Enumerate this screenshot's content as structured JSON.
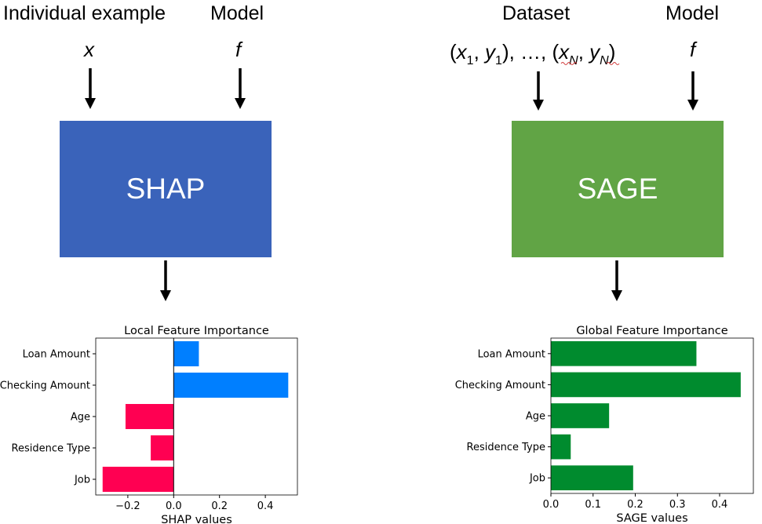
{
  "left": {
    "input_title": "Individual example",
    "input_var": "x",
    "model_title": "Model",
    "model_var": "f",
    "method": "SHAP",
    "method_color": "#3A63BA"
  },
  "right": {
    "input_title": "Dataset",
    "model_title": "Model",
    "model_var": "f",
    "method": "SAGE",
    "method_color": "#61A445"
  },
  "chart_data": [
    {
      "type": "bar",
      "orientation": "horizontal",
      "title": "Local Feature Importance",
      "xlabel": "SHAP values",
      "categories": [
        "Loan Amount",
        "Checking Amount",
        "Age",
        "Residence Type",
        "Job"
      ],
      "values": [
        0.11,
        0.5,
        -0.21,
        -0.1,
        -0.31
      ],
      "xlim": [
        -0.34,
        0.54
      ],
      "xticks": [
        -0.2,
        0.0,
        0.2,
        0.4
      ],
      "xtick_labels": [
        "−0.2",
        "0.0",
        "0.2",
        "0.4"
      ],
      "positive_color": "#007FFF",
      "negative_color": "#FF0052",
      "zero_line": true
    },
    {
      "type": "bar",
      "orientation": "horizontal",
      "title": "Global Feature Importance",
      "xlabel": "SAGE values",
      "categories": [
        "Loan Amount",
        "Checking Amount",
        "Age",
        "Residence Type",
        "Job"
      ],
      "values": [
        0.345,
        0.45,
        0.138,
        0.047,
        0.195
      ],
      "xlim": [
        0.0,
        0.48
      ],
      "xticks": [
        0.0,
        0.1,
        0.2,
        0.3,
        0.4
      ],
      "xtick_labels": [
        "0.0",
        "0.1",
        "0.2",
        "0.3",
        "0.4"
      ],
      "color": "#008B2E"
    }
  ]
}
